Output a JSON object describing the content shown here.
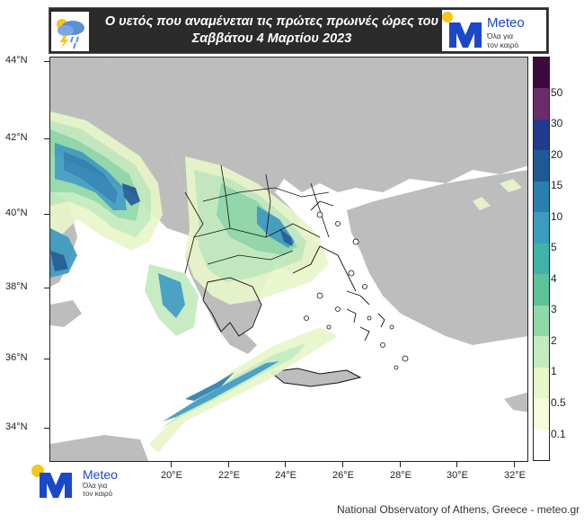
{
  "header": {
    "title_line1": "Ο υετός που αναμένεται τις  πρώτες πρωινές ώρες του",
    "title_line2": "Σαββάτου 4 Μαρτίου 2023"
  },
  "brand": {
    "name": "Meteo",
    "tagline_line1": "Όλα για",
    "tagline_line2": "τον καιρό",
    "color_blue": "#1a48c8",
    "color_yellow": "#f5c518"
  },
  "map": {
    "lat_labels": [
      "44°N",
      "42°N",
      "40°N",
      "38°N",
      "36°N",
      "34°N"
    ],
    "lon_labels": [
      "20°E",
      "22°E",
      "24°E",
      "26°E",
      "28°E",
      "30°E",
      "32°E"
    ],
    "land_color": "#bdbdbd",
    "sea_color": "#ffffff"
  },
  "colorbar": {
    "labels": [
      "50",
      "30",
      "20",
      "15",
      "10",
      "5",
      "4",
      "3",
      "2",
      "1",
      "0.5",
      "0.1"
    ],
    "colors": [
      "#3d0a3e",
      "#6b2c6b",
      "#223a8e",
      "#1f5a96",
      "#2a7fb0",
      "#3d9bbf",
      "#3fb3a5",
      "#5cc29a",
      "#8fd9a8",
      "#c3ebbf",
      "#e9f6c9",
      "#f6fbdc",
      "#ffffff"
    ]
  },
  "footer": {
    "credit": "National Observatory of Athens, Greece - meteo.gr"
  }
}
